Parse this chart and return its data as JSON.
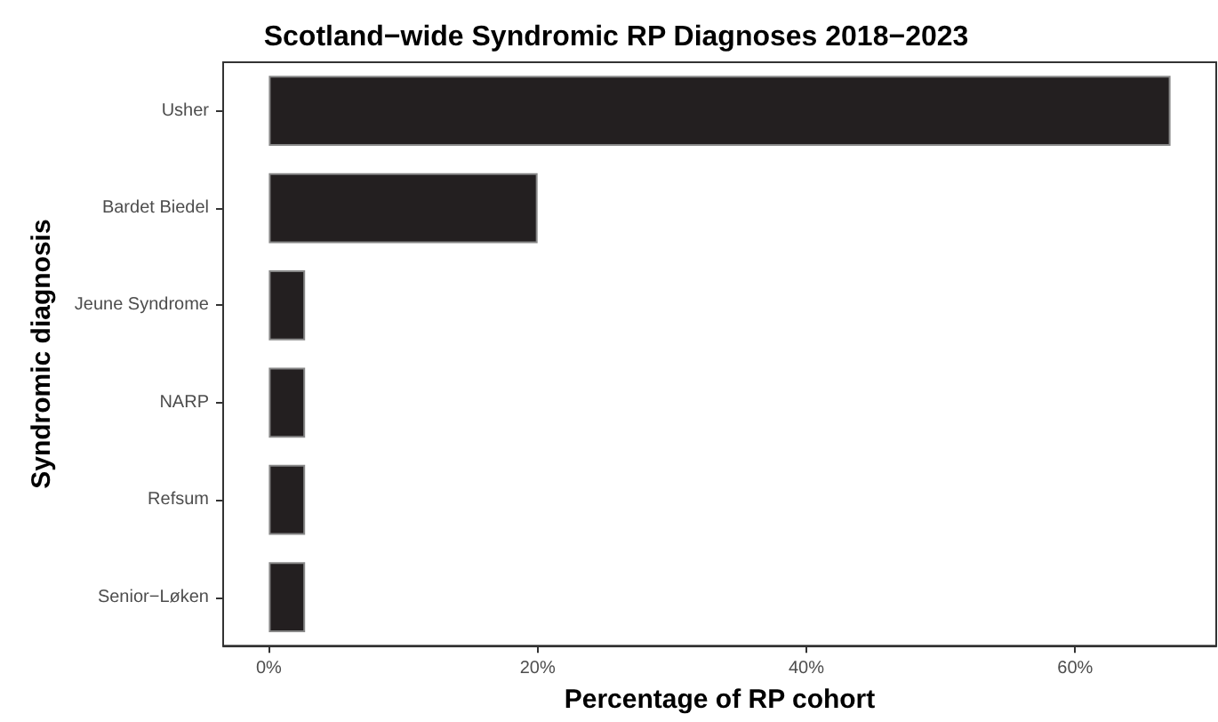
{
  "chart_data": {
    "type": "bar",
    "orientation": "horizontal",
    "title": "Scotland−wide Syndromic RP Diagnoses 2018−2023",
    "xlabel": "Percentage of RP cohort",
    "ylabel": "Syndromic diagnosis",
    "categories": [
      "Usher",
      "Bardet Biedel",
      "Jeune Syndrome",
      "NARP",
      "Refsum",
      "Senior−Løken"
    ],
    "values": [
      67.1,
      20,
      2.7,
      2.7,
      2.7,
      2.7
    ],
    "color": "#231f20",
    "xlim": [
      -3.4,
      70.5
    ],
    "xticks": [
      {
        "value": 0,
        "label": "0%"
      },
      {
        "value": 20,
        "label": "20%"
      },
      {
        "value": 40,
        "label": "40%"
      },
      {
        "value": 60,
        "label": "60%"
      }
    ],
    "grid": false
  }
}
